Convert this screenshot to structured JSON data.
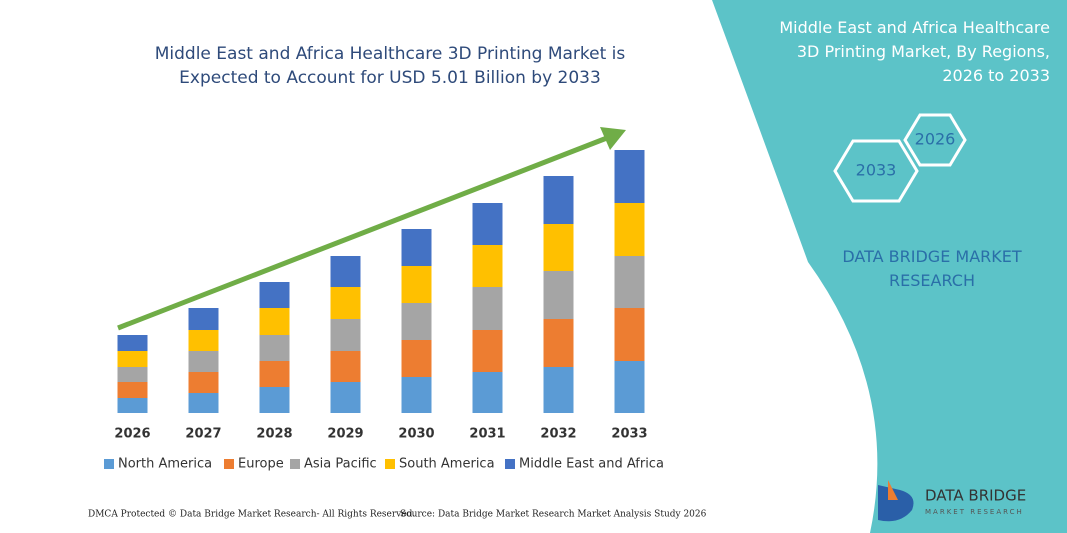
{
  "chart_data": {
    "type": "stacked-bar",
    "title": "Middle East and Africa Healthcare 3D Printing Market is Expected to Account for USD 5.01 Billion by 2033",
    "categories": [
      "2026",
      "2027",
      "2028",
      "2029",
      "2030",
      "2031",
      "2032",
      "2033"
    ],
    "series": [
      {
        "name": "North America",
        "color": "#5b9bd5",
        "values": [
          15,
          20,
          26,
          31,
          36,
          41,
          46,
          52
        ]
      },
      {
        "name": "Europe",
        "color": "#ed7d31",
        "values": [
          16,
          21,
          26,
          31,
          37,
          42,
          48,
          53
        ]
      },
      {
        "name": "Asia Pacific",
        "color": "#a5a5a5",
        "values": [
          15,
          21,
          26,
          32,
          37,
          43,
          48,
          52
        ]
      },
      {
        "name": "South America",
        "color": "#ffc000",
        "values": [
          16,
          21,
          27,
          32,
          37,
          42,
          47,
          53
        ]
      },
      {
        "name": "Middle East and Africa",
        "color": "#4472c4",
        "values": [
          16,
          22,
          26,
          31,
          37,
          42,
          48,
          53
        ]
      }
    ],
    "ylim": [
      0,
      263
    ]
  },
  "panel": {
    "title": "Middle East and Africa Healthcare 3D Printing Market, By Regions, 2026 to 2033",
    "hex_start": "2026",
    "hex_end": "2033",
    "brand": "DATA BRIDGE MARKET RESEARCH"
  },
  "logo": {
    "name": "DATA BRIDGE",
    "tagline": "MARKET RESEARCH"
  },
  "footer": {
    "rights": "DMCA Protected © Data Bridge Market Research- All Rights Reserved.",
    "source": "Source: Data Bridge Market Research Market Analysis Study 2026"
  }
}
